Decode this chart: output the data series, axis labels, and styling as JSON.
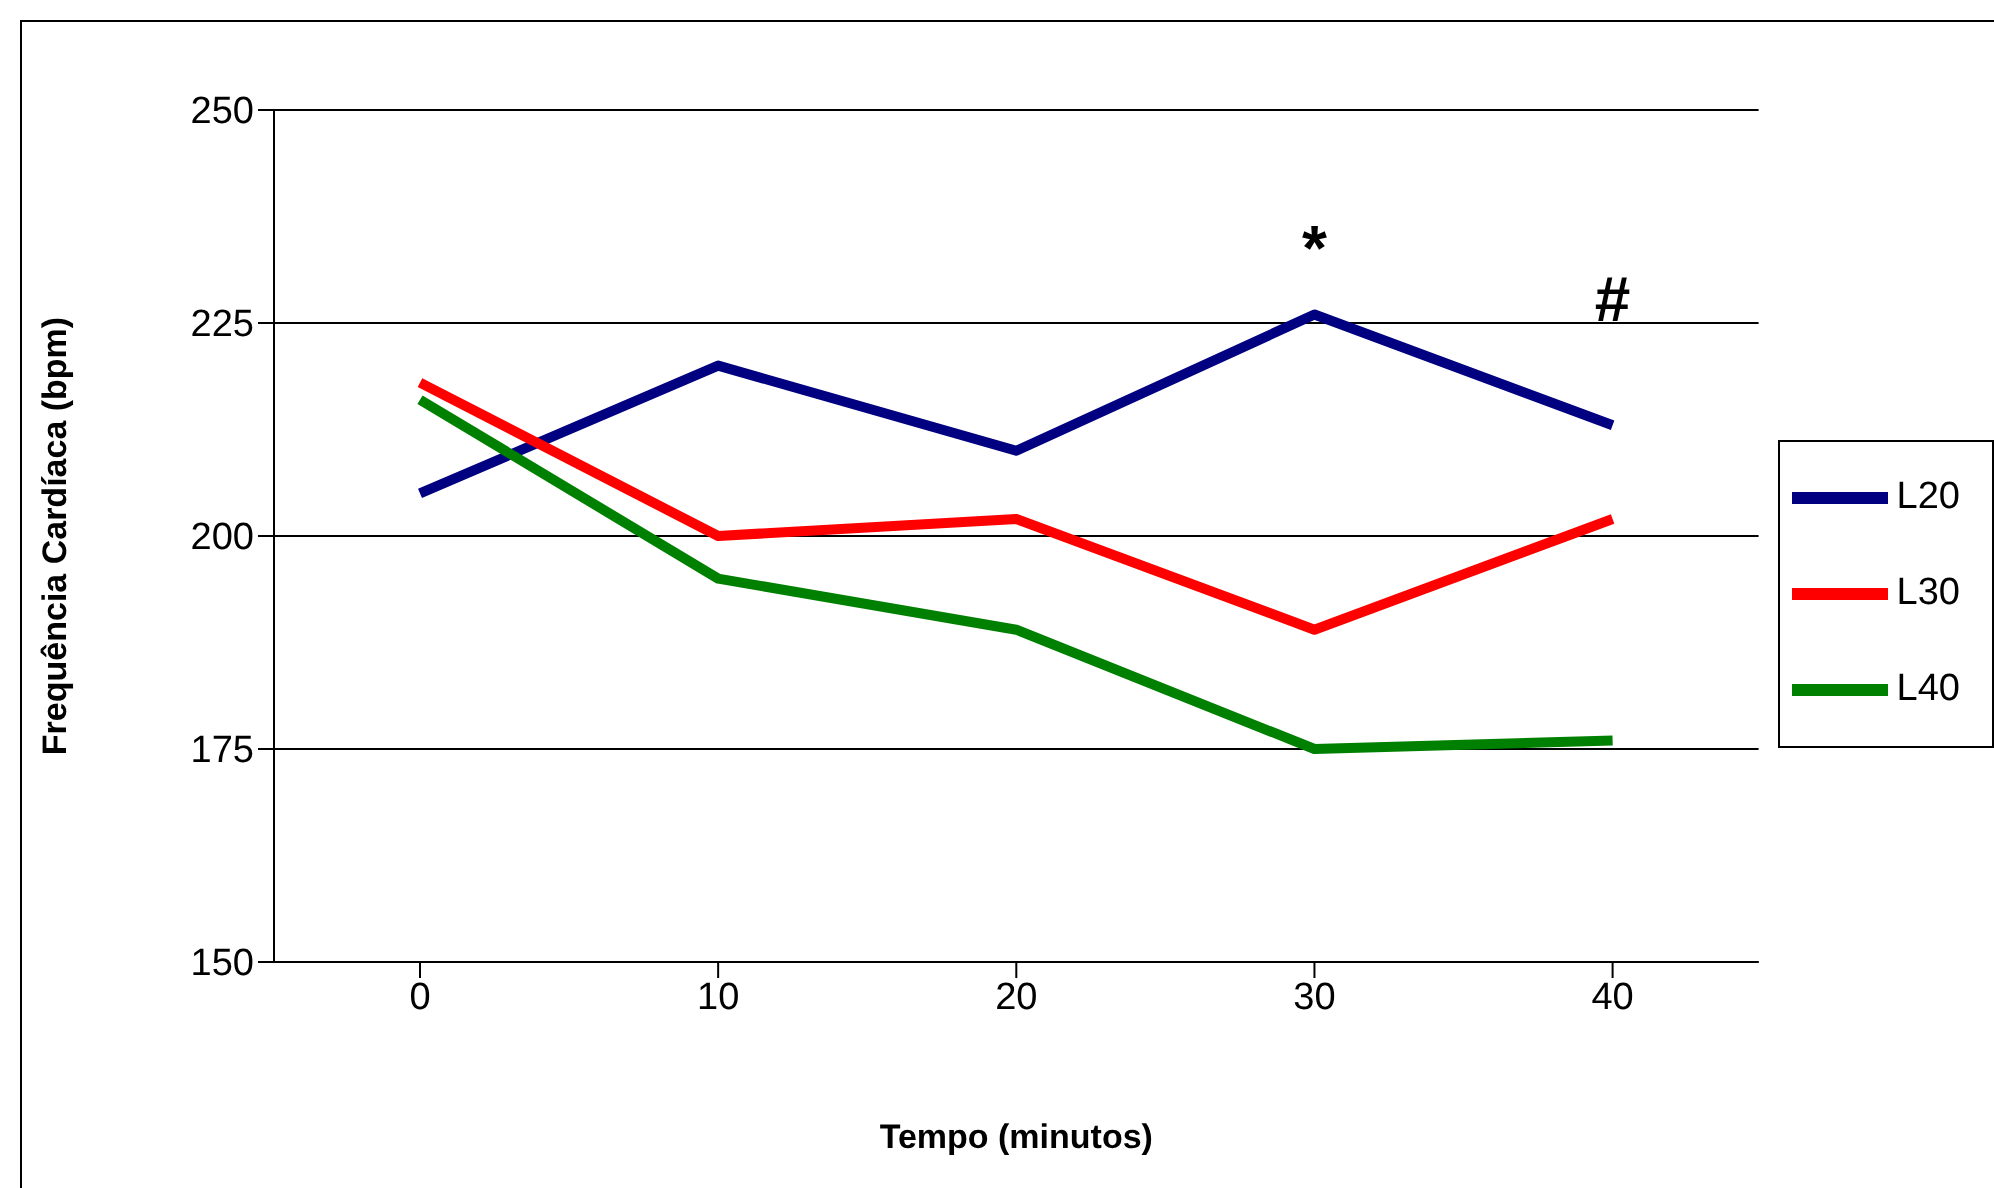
{
  "chart_data": {
    "type": "line",
    "xlabel": "Tempo (minutos)",
    "ylabel": "Frequência Cardíaca (bpm)",
    "categories": [
      "0",
      "10",
      "20",
      "30",
      "40"
    ],
    "series": [
      {
        "name": "L20",
        "color": "#000080",
        "values": [
          205,
          220,
          210,
          226,
          213
        ]
      },
      {
        "name": "L30",
        "color": "#ff0000",
        "values": [
          218,
          200,
          202,
          189,
          202
        ]
      },
      {
        "name": "L40",
        "color": "#008000",
        "values": [
          216,
          195,
          189,
          175,
          176
        ]
      }
    ],
    "ylim": [
      150,
      250
    ],
    "yticks": [
      150,
      175,
      200,
      225,
      250
    ],
    "grid": "y",
    "legend": "right",
    "marker": "none",
    "line_style": "solid",
    "annotations": [
      {
        "text": "*",
        "x": "30",
        "y": 226
      },
      {
        "text": "#",
        "x": "40",
        "y": 213
      }
    ]
  }
}
